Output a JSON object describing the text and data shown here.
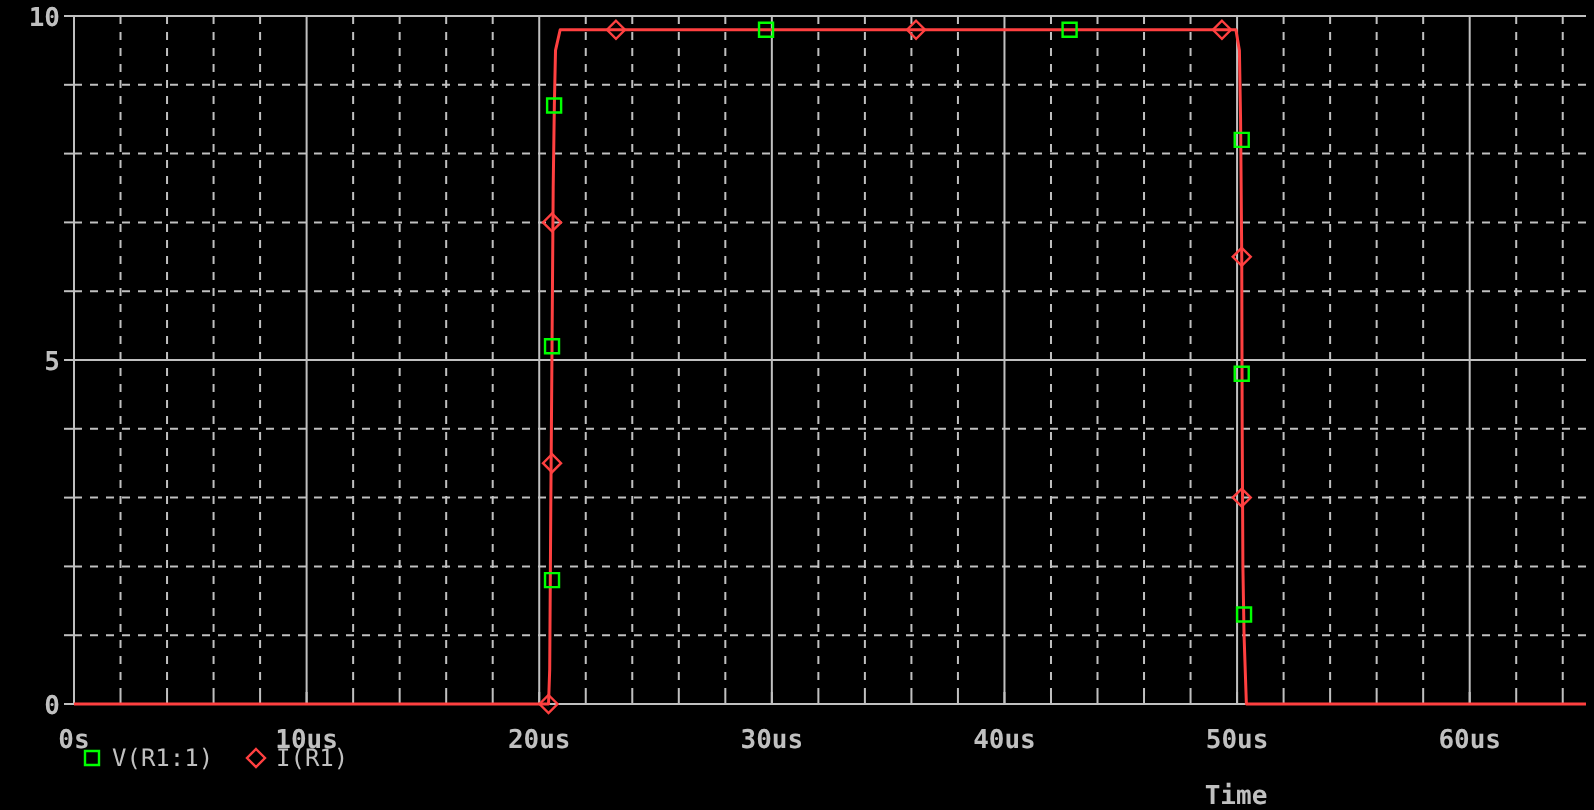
{
  "chart_data": {
    "type": "line",
    "xlabel": "Time",
    "xlim": [
      0,
      65
    ],
    "ylim": [
      0,
      10
    ],
    "xticks": [
      {
        "value": 0,
        "label": "0s"
      },
      {
        "value": 2,
        "label": null
      },
      {
        "value": 4,
        "label": null
      },
      {
        "value": 6,
        "label": null
      },
      {
        "value": 8,
        "label": null
      },
      {
        "value": 10,
        "label": "10us"
      },
      {
        "value": 12,
        "label": null
      },
      {
        "value": 14,
        "label": null
      },
      {
        "value": 16,
        "label": null
      },
      {
        "value": 18,
        "label": null
      },
      {
        "value": 20,
        "label": "20us"
      },
      {
        "value": 22,
        "label": null
      },
      {
        "value": 24,
        "label": null
      },
      {
        "value": 26,
        "label": null
      },
      {
        "value": 28,
        "label": null
      },
      {
        "value": 30,
        "label": "30us"
      },
      {
        "value": 32,
        "label": null
      },
      {
        "value": 34,
        "label": null
      },
      {
        "value": 36,
        "label": null
      },
      {
        "value": 38,
        "label": null
      },
      {
        "value": 40,
        "label": "40us"
      },
      {
        "value": 42,
        "label": null
      },
      {
        "value": 44,
        "label": null
      },
      {
        "value": 46,
        "label": null
      },
      {
        "value": 48,
        "label": null
      },
      {
        "value": 50,
        "label": "50us"
      },
      {
        "value": 52,
        "label": null
      },
      {
        "value": 54,
        "label": null
      },
      {
        "value": 56,
        "label": null
      },
      {
        "value": 58,
        "label": null
      },
      {
        "value": 60,
        "label": "60us"
      },
      {
        "value": 62,
        "label": null
      },
      {
        "value": 64,
        "label": null
      }
    ],
    "yticks": [
      0,
      {
        "value": 1,
        "label": null
      },
      {
        "value": 2,
        "label": null
      },
      {
        "value": 3,
        "label": null
      },
      {
        "value": 4,
        "label": null
      },
      5,
      {
        "value": 6,
        "label": null
      },
      {
        "value": 7,
        "label": null
      },
      {
        "value": 8,
        "label": null
      },
      {
        "value": 9,
        "label": null
      },
      10
    ],
    "grid": true,
    "legend": "bottom left",
    "series": [
      {
        "color": "#ff4040",
        "marker": "none",
        "x": [
          0,
          20.4,
          20.45,
          20.5,
          20.55,
          20.6,
          20.65,
          20.7,
          20.9,
          49.95,
          50.1,
          50.15,
          50.2,
          50.22,
          50.25,
          50.3,
          50.4,
          65
        ],
        "values": [
          0,
          0,
          0.5,
          3,
          5.2,
          7.5,
          8.7,
          9.5,
          9.8,
          9.8,
          9.5,
          8.5,
          6.5,
          4,
          2,
          1,
          0,
          0
        ]
      },
      {
        "type": "scatter",
        "name": "V(R1:1)",
        "color": "#00ff00",
        "marker": "square",
        "x": [
          20.55,
          20.55,
          20.64,
          29.75,
          42.8,
          50.2,
          50.2,
          50.3
        ],
        "values": [
          1.8,
          5.2,
          8.7,
          9.8,
          9.8,
          8.2,
          4.8,
          1.3
        ]
      },
      {
        "type": "scatter",
        "name": "I(R1)",
        "color": "#ff4040",
        "marker": "diamond",
        "x": [
          20.4,
          20.55,
          20.55,
          23.3,
          36.2,
          49.35,
          50.2,
          50.2
        ],
        "values": [
          0,
          3.5,
          7.0,
          9.8,
          9.8,
          9.8,
          6.5,
          3.0
        ]
      }
    ]
  }
}
